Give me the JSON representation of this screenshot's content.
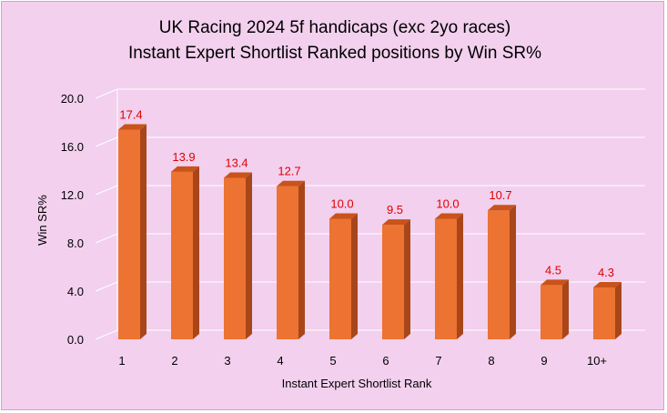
{
  "chart_data": {
    "type": "bar",
    "title_line1": "UK Racing 2024 5f handicaps (exc 2yo races)",
    "title_line2": "Instant Expert Shortlist Ranked positions by Win SR%",
    "xlabel": "Instant Expert Shortlist Rank",
    "ylabel": "Win SR%",
    "categories": [
      "1",
      "2",
      "3",
      "4",
      "5",
      "6",
      "7",
      "8",
      "9",
      "10+"
    ],
    "values": [
      17.4,
      13.9,
      13.4,
      12.7,
      10.0,
      9.5,
      10.0,
      10.7,
      4.5,
      4.3
    ],
    "value_labels": [
      "17.4",
      "13.9",
      "13.4",
      "12.7",
      "10.0",
      "9.5",
      "10.0",
      "10.7",
      "4.5",
      "4.3"
    ],
    "ylim": [
      0,
      20
    ],
    "yticks": [
      "0.0",
      "4.0",
      "8.0",
      "12.0",
      "16.0",
      "20.0"
    ],
    "grid": true,
    "style": "3d-column",
    "colors": {
      "background": "#f2d0ee",
      "bar_front": "#ec7331",
      "bar_top": "#c9531a",
      "bar_side": "#a8461a",
      "data_label": "#e00000",
      "grid": "#ffffff"
    }
  }
}
